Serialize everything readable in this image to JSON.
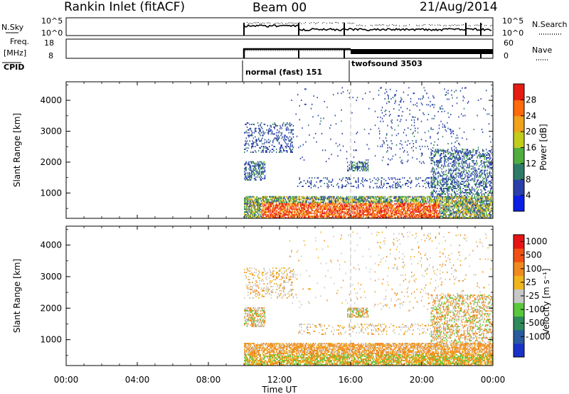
{
  "header": {
    "title": "Rankin Inlet (fitACF)",
    "beam": "Beam 00",
    "date": "21/Aug/2014"
  },
  "panels": {
    "nsky": {
      "left_label": "N.Sky",
      "left_ticks": [
        "10^5",
        "10^0"
      ],
      "right_label": "N.Search",
      "right_ticks": [
        "10^5",
        "10^0"
      ]
    },
    "freq": {
      "left_label_1": "Freq.",
      "left_label_2": "[MHz]",
      "left_ticks": [
        "18",
        "8"
      ],
      "right_label": "Nave",
      "right_ticks": [
        "60",
        "0"
      ]
    },
    "cpid": {
      "label": "CPID",
      "modes": [
        "normal (fast) 151",
        "twofsound 3503"
      ]
    }
  },
  "chart_data": [
    {
      "type": "heatmap",
      "name": "power",
      "ylabel": "Slant Range [km]",
      "xlabel": "",
      "x_ticks": [
        "00:00",
        "04:00",
        "08:00",
        "12:00",
        "16:00",
        "20:00",
        "00:00"
      ],
      "y_ticks": [
        "1000",
        "2000",
        "3000",
        "4000"
      ],
      "ylim": [
        180,
        4600
      ],
      "xlim_hours": [
        0,
        24
      ],
      "data_start_hour": 10,
      "mode_change_hour": 16,
      "colorbar": {
        "label": "Power [dB]",
        "ticks": [
          "4",
          "8",
          "12",
          "16",
          "20",
          "24",
          "28"
        ],
        "colors": [
          "#0a1ee6",
          "#2a40a8",
          "#2e7a68",
          "#4fae3d",
          "#c2cc1a",
          "#f0a21a",
          "#ff6a0a",
          "#e61c12"
        ]
      }
    },
    {
      "type": "heatmap",
      "name": "velocity",
      "ylabel": "Slant Range [km]",
      "xlabel": "Time UT",
      "x_ticks": [
        "00:00",
        "04:00",
        "08:00",
        "12:00",
        "16:00",
        "20:00",
        "00:00"
      ],
      "y_ticks": [
        "1000",
        "2000",
        "3000",
        "4000"
      ],
      "ylim": [
        180,
        4600
      ],
      "xlim_hours": [
        0,
        24
      ],
      "data_start_hour": 10,
      "mode_change_hour": 16,
      "colorbar": {
        "label": "Velocity [m s⁻¹]",
        "ticks": [
          "1000",
          "500",
          "100",
          "25",
          "-25",
          "-100",
          "-500",
          "-1000"
        ],
        "colors": [
          "#1a32c8",
          "#2a5a9e",
          "#2e8a5a",
          "#5ac83c",
          "#c8c8c8",
          "#f0b41e",
          "#f08a1e",
          "#f05014",
          "#e61414"
        ]
      }
    }
  ]
}
